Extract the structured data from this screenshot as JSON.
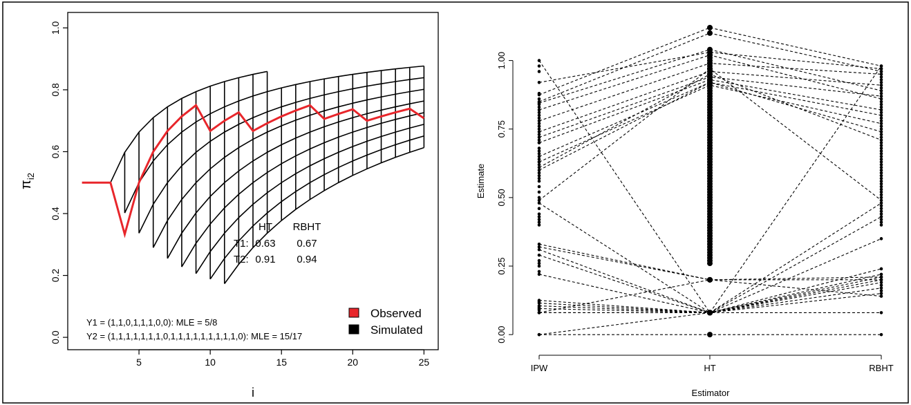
{
  "chart_data": [
    {
      "type": "line",
      "xlabel": "i",
      "ylabel": "π",
      "ylabel_sub": "i2",
      "xlim": [
        0,
        26
      ],
      "ylim": [
        -0.04,
        1.05
      ],
      "x_ticks": [
        5,
        10,
        15,
        20,
        25
      ],
      "y_ticks": [
        0.0,
        0.2,
        0.4,
        0.6,
        0.8,
        1.0
      ],
      "y_tick_labels": [
        "0.0",
        "0.2",
        "0.4",
        "0.6",
        "0.8",
        "1.0"
      ],
      "colors": {
        "observed": "#e8262b",
        "simulated": "#000000"
      },
      "series": [
        {
          "name": "Observed",
          "x": [
            1,
            2,
            3,
            4,
            5,
            6,
            7,
            8,
            9,
            10,
            11,
            12,
            13,
            14,
            15,
            16,
            17,
            18,
            19,
            20,
            21,
            22,
            23,
            24,
            25
          ],
          "values": [
            0.5,
            0.5,
            0.5,
            0.333,
            0.5,
            0.6,
            0.667,
            0.714,
            0.75,
            0.667,
            0.7,
            0.727,
            0.667,
            0.692,
            0.714,
            0.733,
            0.75,
            0.706,
            0.722,
            0.737,
            0.7,
            0.714,
            0.727,
            0.739,
            0.708
          ]
        },
        {
          "name": "Simulated",
          "fan_start": 3,
          "fan_end": 25,
          "path_count": 9,
          "fan_base": [
            0.333,
            0.25,
            0.2,
            0.5,
            0.6,
            0.667,
            0.714,
            0.75
          ],
          "first_chain_end": 14
        }
      ],
      "annotation_table": {
        "headers": [
          "HT",
          "RBHT"
        ],
        "rows": [
          {
            "label": "T1:",
            "ht": "0.63",
            "rbht": "0.67"
          },
          {
            "label": "T2:",
            "ht": "0.91",
            "rbht": "0.94"
          }
        ]
      },
      "notes": [
        "Y1 = (1,1,0,1,1,1,0,0): MLE = 5/8",
        "Y2 = (1,1,1,1,1,1,1,0,1,1,1,1,1,1,1,1,1,0): MLE = 15/17"
      ],
      "legend": {
        "position": "bottom-right",
        "entries": [
          "Observed",
          "Simulated"
        ]
      }
    },
    {
      "type": "scatter",
      "xlabel": "Estimator",
      "ylabel": "Estimate",
      "categories": [
        "IPW",
        "HT",
        "RBHT"
      ],
      "ylim": [
        -0.04,
        1.12
      ],
      "y_ticks": [
        0.0,
        0.25,
        0.5,
        0.75,
        1.0
      ],
      "y_tick_labels": [
        "0.00",
        "0.25",
        "0.50",
        "0.75",
        "1.00"
      ],
      "series": [
        {
          "name": "",
          "values": [
            1.0,
            0.08,
            0.98
          ]
        },
        {
          "name": "",
          "values": [
            0.92,
            1.03,
            0.97
          ]
        },
        {
          "name": "",
          "values": [
            0.875,
            1.12,
            0.98
          ]
        },
        {
          "name": "",
          "values": [
            0.85,
            1.1,
            0.96
          ]
        },
        {
          "name": "",
          "values": [
            0.845,
            1.04,
            0.89
          ]
        },
        {
          "name": "",
          "values": [
            0.82,
            1.02,
            0.86
          ]
        },
        {
          "name": "",
          "values": [
            0.78,
            0.99,
            0.95
          ]
        },
        {
          "name": "",
          "values": [
            0.74,
            0.96,
            0.91
          ]
        },
        {
          "name": "",
          "values": [
            0.72,
            0.94,
            0.87
          ]
        },
        {
          "name": "",
          "values": [
            0.7,
            0.93,
            0.82
          ]
        },
        {
          "name": "",
          "values": [
            0.65,
            0.92,
            0.8
          ]
        },
        {
          "name": "",
          "values": [
            0.63,
            0.91,
            0.77
          ]
        },
        {
          "name": "",
          "values": [
            0.6,
            0.92,
            0.74
          ]
        },
        {
          "name": "",
          "values": [
            0.61,
            0.95,
            0.71
          ]
        },
        {
          "name": "",
          "values": [
            0.49,
            0.97,
            0.49
          ]
        },
        {
          "name": "",
          "values": [
            0.48,
            0.08,
            0.48
          ]
        },
        {
          "name": "",
          "values": [
            0.33,
            0.2,
            0.2
          ]
        },
        {
          "name": "",
          "values": [
            0.32,
            0.2,
            0.21
          ]
        },
        {
          "name": "",
          "values": [
            0.31,
            0.08,
            0.22
          ]
        },
        {
          "name": "",
          "values": [
            0.29,
            0.08,
            0.24
          ]
        },
        {
          "name": "",
          "values": [
            0.22,
            0.08,
            0.43
          ]
        },
        {
          "name": "",
          "values": [
            0.125,
            0.08,
            0.35
          ]
        },
        {
          "name": "",
          "values": [
            0.115,
            0.08,
            0.21
          ]
        },
        {
          "name": "",
          "values": [
            0.105,
            0.08,
            0.2
          ]
        },
        {
          "name": "",
          "values": [
            0.095,
            0.08,
            0.19
          ]
        },
        {
          "name": "",
          "values": [
            0.08,
            0.08,
            0.17
          ]
        },
        {
          "name": "",
          "values": [
            0.08,
            0.08,
            0.15
          ]
        },
        {
          "name": "",
          "values": [
            0.08,
            0.2,
            0.14
          ]
        },
        {
          "name": "",
          "values": [
            0.0,
            0.0,
            0.0
          ]
        },
        {
          "name": "",
          "values": [
            0.0,
            0.08,
            0.08
          ]
        }
      ],
      "extra_points": {
        "IPW": [
          0.98,
          0.96,
          0.88,
          0.86,
          0.84,
          0.83,
          0.81,
          0.8,
          0.79,
          0.77,
          0.76,
          0.75,
          0.73,
          0.71,
          0.7,
          0.68,
          0.67,
          0.66,
          0.64,
          0.63,
          0.62,
          0.59,
          0.58,
          0.57,
          0.56,
          0.54,
          0.52,
          0.5,
          0.46,
          0.44,
          0.43,
          0.42,
          0.41,
          0.4,
          0.27,
          0.26,
          0.25,
          0.23,
          0.12,
          0.1,
          0.09
        ],
        "HT": [
          1.02,
          1.01,
          1.0,
          0.99,
          0.98,
          0.97,
          0.95,
          0.94,
          0.93,
          0.92,
          0.91,
          0.9,
          0.89,
          0.88,
          0.87,
          0.86,
          0.85,
          0.84,
          0.83,
          0.82,
          0.81,
          0.8,
          0.79,
          0.78,
          0.77,
          0.76,
          0.75,
          0.74,
          0.73,
          0.72,
          0.71,
          0.7,
          0.69,
          0.68,
          0.67,
          0.66,
          0.65,
          0.64,
          0.63,
          0.62,
          0.61,
          0.6,
          0.59,
          0.58,
          0.57,
          0.56,
          0.55,
          0.54,
          0.53,
          0.52,
          0.51,
          0.5,
          0.49,
          0.48,
          0.47,
          0.46,
          0.45,
          0.44,
          0.43,
          0.42,
          0.41,
          0.4,
          0.39,
          0.38,
          0.37,
          0.36,
          0.35,
          0.34,
          0.33,
          0.32,
          0.31,
          0.3,
          0.29,
          0.28,
          0.27,
          0.26
        ],
        "RBHT": [
          0.97,
          0.96,
          0.94,
          0.93,
          0.92,
          0.9,
          0.88,
          0.85,
          0.84,
          0.83,
          0.81,
          0.79,
          0.78,
          0.76,
          0.75,
          0.73,
          0.72,
          0.7,
          0.69,
          0.68,
          0.67,
          0.66,
          0.65,
          0.64,
          0.63,
          0.62,
          0.61,
          0.6,
          0.59,
          0.58,
          0.57,
          0.56,
          0.55,
          0.54,
          0.53,
          0.52,
          0.51,
          0.5,
          0.47,
          0.46,
          0.45,
          0.44,
          0.42,
          0.41,
          0.4,
          0.18,
          0.16
        ]
      }
    }
  ]
}
